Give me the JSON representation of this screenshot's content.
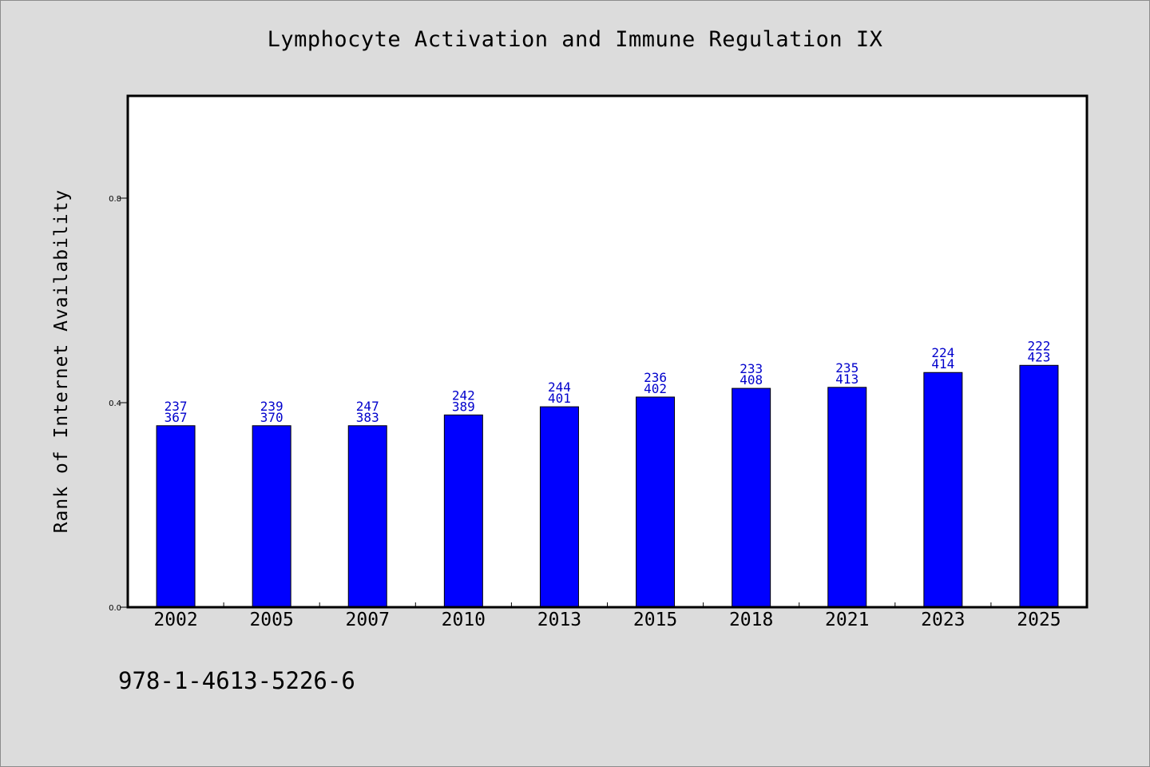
{
  "title": "Lymphocyte Activation and Immune Regulation IX",
  "ylabel": "Rank of Internet Availability",
  "footer_code": "978-1-4613-5226-6",
  "colors": {
    "bar_fill": "#0000ff",
    "bar_stroke": "#000000",
    "data_label": "#0000cc",
    "plot_bg": "#ffffff",
    "page_bg": "#dcdcdc"
  },
  "chart_data": {
    "type": "bar",
    "title": "Lymphocyte Activation and Immune Regulation IX",
    "xlabel": "",
    "ylabel": "Rank of Internet Availability",
    "ylim": [
      0,
      1.0
    ],
    "yticks": [
      0.0,
      0.4,
      0.8
    ],
    "ytick_labels": [
      "0.0",
      "0.4",
      "0.8"
    ],
    "grid": false,
    "legend": "none",
    "categories": [
      "2002",
      "2005",
      "2007",
      "2010",
      "2013",
      "2015",
      "2018",
      "2021",
      "2023",
      "2025"
    ],
    "values": [
      0.355,
      0.355,
      0.355,
      0.376,
      0.392,
      0.411,
      0.428,
      0.43,
      0.459,
      0.473
    ],
    "data_labels_top": [
      "237",
      "239",
      "247",
      "242",
      "244",
      "236",
      "233",
      "235",
      "224",
      "222"
    ],
    "data_labels_bottom": [
      "367",
      "370",
      "383",
      "389",
      "401",
      "402",
      "408",
      "413",
      "414",
      "423"
    ]
  }
}
